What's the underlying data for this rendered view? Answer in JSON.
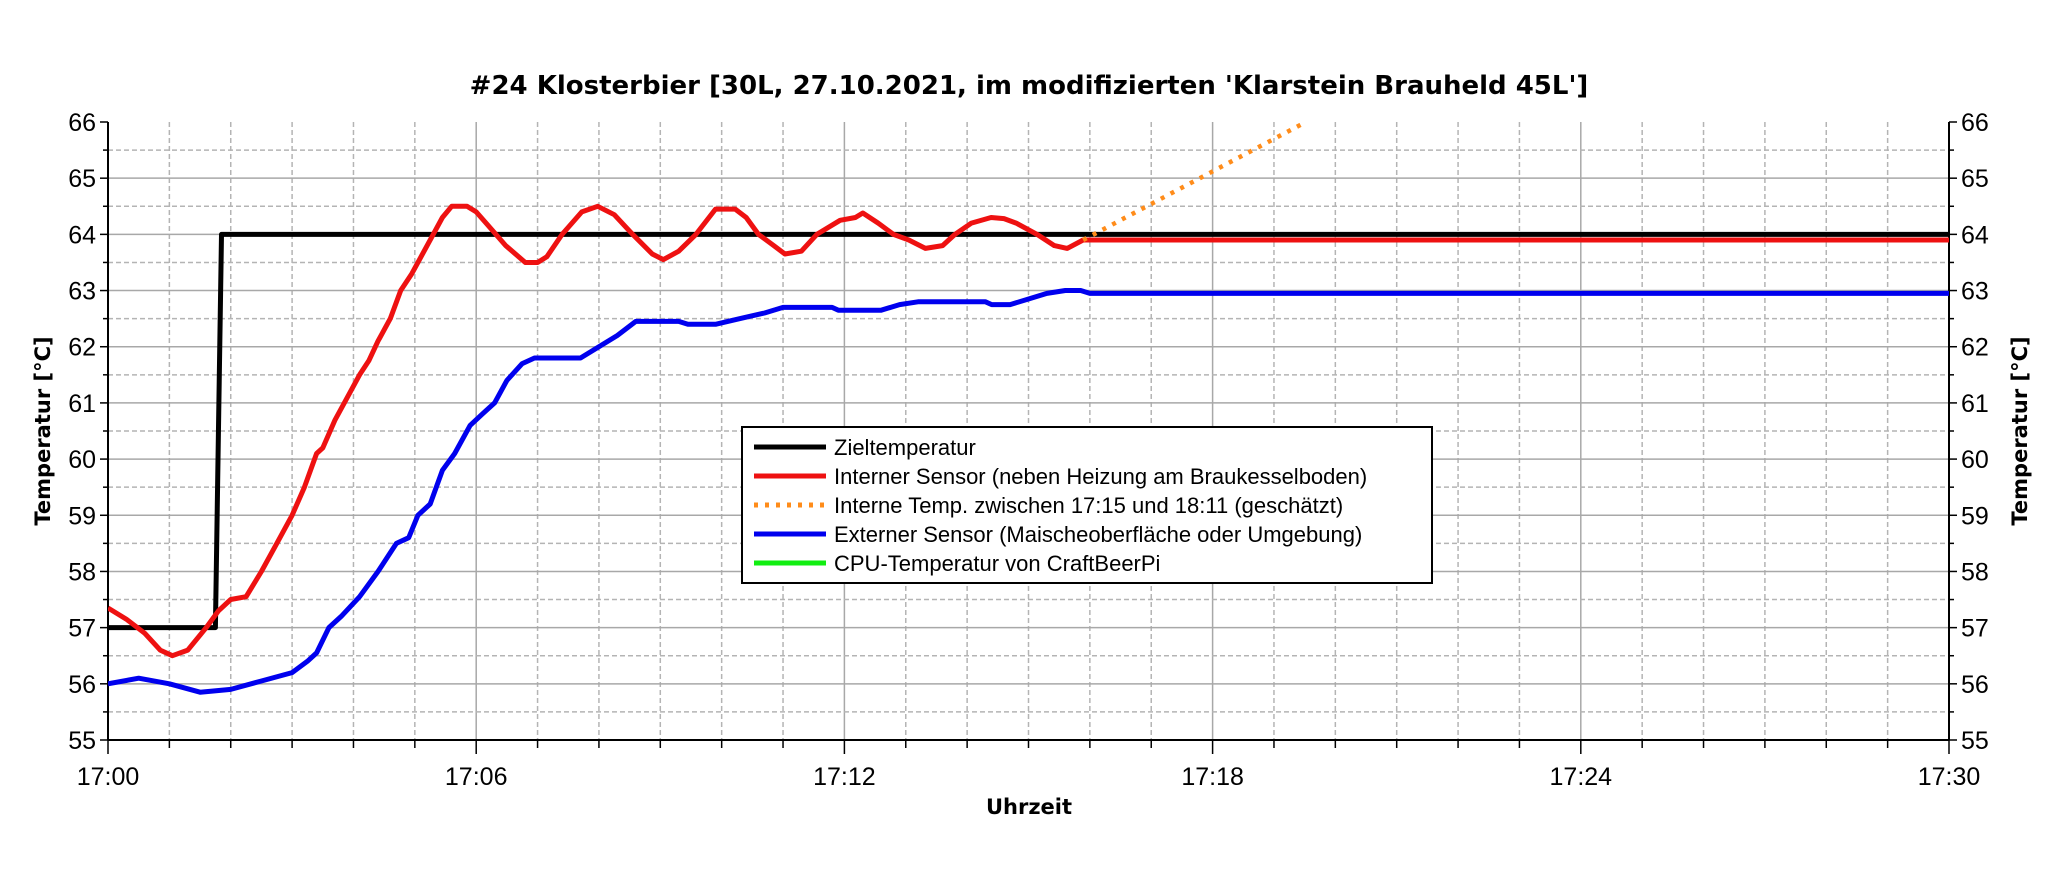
{
  "chart_data": {
    "type": "line",
    "title": "#24 Klosterbier [30L, 27.10.2021, im modifizierten 'Klarstein Brauheld 45L']",
    "xlabel": "Uhrzeit",
    "ylabel": "Temperatur [°C]",
    "ylabel_right": "Temperatur [°C]",
    "x_unit": "minutes after 17:00",
    "xlim": [
      0,
      30
    ],
    "ylim": [
      55,
      66
    ],
    "x_ticks": [
      0,
      6,
      12,
      18,
      24,
      30
    ],
    "x_tick_labels": [
      "17:00",
      "17:06",
      "17:12",
      "17:18",
      "17:24",
      "17:30"
    ],
    "y_ticks": [
      55,
      56,
      57,
      58,
      59,
      60,
      61,
      62,
      63,
      64,
      65,
      66
    ],
    "y_tick_labels": [
      "55",
      "56",
      "57",
      "58",
      "59",
      "60",
      "61",
      "62",
      "63",
      "64",
      "65",
      "66"
    ],
    "grid": true,
    "legend_position": "center",
    "series": [
      {
        "name": "Zieltemperatur",
        "color": "#000000",
        "style": "solid",
        "points": [
          [
            0,
            57
          ],
          [
            1.75,
            57
          ],
          [
            1.85,
            64
          ],
          [
            30,
            64
          ]
        ]
      },
      {
        "name": "Interner Sensor (neben Heizung am Braukesselboden)",
        "color": "#ee1111",
        "style": "solid",
        "points": [
          [
            0,
            57.35
          ],
          [
            0.3,
            57.15
          ],
          [
            0.6,
            56.9
          ],
          [
            0.85,
            56.6
          ],
          [
            1.05,
            56.5
          ],
          [
            1.3,
            56.6
          ],
          [
            1.6,
            57.0
          ],
          [
            1.8,
            57.3
          ],
          [
            2.0,
            57.5
          ],
          [
            2.25,
            57.55
          ],
          [
            2.5,
            58.0
          ],
          [
            2.75,
            58.5
          ],
          [
            3.0,
            59.0
          ],
          [
            3.2,
            59.5
          ],
          [
            3.4,
            60.1
          ],
          [
            3.5,
            60.2
          ],
          [
            3.7,
            60.7
          ],
          [
            3.85,
            61.0
          ],
          [
            4.1,
            61.5
          ],
          [
            4.25,
            61.75
          ],
          [
            4.4,
            62.1
          ],
          [
            4.6,
            62.5
          ],
          [
            4.77,
            63.0
          ],
          [
            4.95,
            63.3
          ],
          [
            5.1,
            63.6
          ],
          [
            5.3,
            64.0
          ],
          [
            5.45,
            64.3
          ],
          [
            5.6,
            64.5
          ],
          [
            5.85,
            64.5
          ],
          [
            6.0,
            64.4
          ],
          [
            6.2,
            64.15
          ],
          [
            6.48,
            63.8
          ],
          [
            6.8,
            63.5
          ],
          [
            7.0,
            63.5
          ],
          [
            7.15,
            63.6
          ],
          [
            7.4,
            64.0
          ],
          [
            7.72,
            64.4
          ],
          [
            7.98,
            64.5
          ],
          [
            8.25,
            64.35
          ],
          [
            8.55,
            64.0
          ],
          [
            8.87,
            63.65
          ],
          [
            9.05,
            63.55
          ],
          [
            9.3,
            63.7
          ],
          [
            9.58,
            64.0
          ],
          [
            9.9,
            64.45
          ],
          [
            10.22,
            64.45
          ],
          [
            10.4,
            64.3
          ],
          [
            10.6,
            64.0
          ],
          [
            10.85,
            63.8
          ],
          [
            11.03,
            63.65
          ],
          [
            11.3,
            63.7
          ],
          [
            11.55,
            64.0
          ],
          [
            11.93,
            64.25
          ],
          [
            12.18,
            64.3
          ],
          [
            12.3,
            64.38
          ],
          [
            12.55,
            64.2
          ],
          [
            12.8,
            64.0
          ],
          [
            13.05,
            63.9
          ],
          [
            13.32,
            63.75
          ],
          [
            13.6,
            63.8
          ],
          [
            13.8,
            64.0
          ],
          [
            14.07,
            64.2
          ],
          [
            14.39,
            64.3
          ],
          [
            14.6,
            64.28
          ],
          [
            14.8,
            64.2
          ],
          [
            15.14,
            64.0
          ],
          [
            15.42,
            63.8
          ],
          [
            15.63,
            63.75
          ],
          [
            15.89,
            63.9
          ],
          [
            30,
            63.9
          ]
        ]
      },
      {
        "name": "Interne Temp. zwischen 17:15 und 18:11 (geschätzt)",
        "color": "#ff8c1a",
        "style": "dotted",
        "points": [
          [
            15.89,
            63.9
          ],
          [
            19.52,
            66.0
          ]
        ]
      },
      {
        "name": "Externer Sensor (Maischeoberfläche oder Umgebung)",
        "color": "#0000ee",
        "style": "solid",
        "points": [
          [
            0,
            56.0
          ],
          [
            0.5,
            56.1
          ],
          [
            1.0,
            56.0
          ],
          [
            1.5,
            55.85
          ],
          [
            2.0,
            55.9
          ],
          [
            2.5,
            56.05
          ],
          [
            3.0,
            56.2
          ],
          [
            3.25,
            56.4
          ],
          [
            3.4,
            56.55
          ],
          [
            3.6,
            57.0
          ],
          [
            3.8,
            57.2
          ],
          [
            4.1,
            57.55
          ],
          [
            4.4,
            58.0
          ],
          [
            4.7,
            58.5
          ],
          [
            4.9,
            58.6
          ],
          [
            5.05,
            59.0
          ],
          [
            5.25,
            59.2
          ],
          [
            5.45,
            59.8
          ],
          [
            5.65,
            60.1
          ],
          [
            5.9,
            60.6
          ],
          [
            6.1,
            60.8
          ],
          [
            6.3,
            61.0
          ],
          [
            6.5,
            61.4
          ],
          [
            6.75,
            61.7
          ],
          [
            6.95,
            61.8
          ],
          [
            7.7,
            61.8
          ],
          [
            8.0,
            62.0
          ],
          [
            8.3,
            62.2
          ],
          [
            8.6,
            62.45
          ],
          [
            9.3,
            62.45
          ],
          [
            9.45,
            62.4
          ],
          [
            9.9,
            62.4
          ],
          [
            10.3,
            62.5
          ],
          [
            10.7,
            62.6
          ],
          [
            11.0,
            62.7
          ],
          [
            11.8,
            62.7
          ],
          [
            11.9,
            62.65
          ],
          [
            12.6,
            62.65
          ],
          [
            12.9,
            62.75
          ],
          [
            13.2,
            62.8
          ],
          [
            14.3,
            62.8
          ],
          [
            14.4,
            62.75
          ],
          [
            14.7,
            62.75
          ],
          [
            15.0,
            62.85
          ],
          [
            15.3,
            62.95
          ],
          [
            15.6,
            63.0
          ],
          [
            15.85,
            63.0
          ],
          [
            16.0,
            62.95
          ],
          [
            30,
            62.95
          ]
        ]
      },
      {
        "name": "CPU-Temperatur von CraftBeerPi",
        "color": "#11ee11",
        "style": "solid",
        "points": []
      }
    ]
  }
}
